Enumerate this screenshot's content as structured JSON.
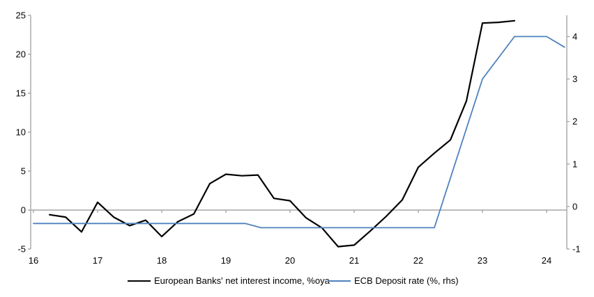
{
  "chart_data": {
    "type": "line",
    "title": "",
    "legend_position": "bottom",
    "grid": false,
    "colors": {
      "axis_line": "#a6a6a6",
      "zero_line": "#a6a6a6",
      "tick_label": "#000000",
      "series_nii": "#000000",
      "series_ecb": "#4f81bd",
      "background": "#ffffff"
    },
    "x_axis": {
      "ticks": [
        16,
        17,
        18,
        19,
        20,
        21,
        22,
        23,
        24
      ],
      "range": [
        15.96,
        24.32
      ]
    },
    "left_axis": {
      "ticks": [
        -5,
        0,
        5,
        10,
        15,
        20,
        25
      ],
      "range": [
        -5,
        25
      ]
    },
    "right_axis": {
      "ticks": [
        -1,
        0,
        1,
        2,
        3,
        4
      ],
      "range": [
        -1,
        4.5
      ]
    },
    "series": [
      {
        "name": "European Banks' net interest income, %oya",
        "axis": "left",
        "color": "#000000",
        "width": 2.2,
        "x": [
          16.25,
          16.5,
          16.75,
          17.0,
          17.25,
          17.5,
          17.75,
          18.0,
          18.25,
          18.5,
          18.75,
          19.0,
          19.25,
          19.5,
          19.75,
          20.0,
          20.25,
          20.5,
          20.75,
          21.0,
          21.25,
          21.5,
          21.75,
          22.0,
          22.25,
          22.5,
          22.75,
          23.0,
          23.25,
          23.5
        ],
        "values": [
          -0.6,
          -0.9,
          -2.8,
          1.0,
          -0.9,
          -2.0,
          -1.3,
          -3.4,
          -1.5,
          -0.5,
          3.4,
          4.6,
          4.4,
          4.5,
          1.5,
          1.2,
          -1.0,
          -2.3,
          -4.7,
          -4.5,
          -2.7,
          -0.8,
          1.3,
          5.5,
          7.3,
          9.0,
          14.0,
          24.0,
          24.1,
          24.3
        ]
      },
      {
        "name": "ECB Deposit rate (%, rhs)",
        "axis": "right",
        "color": "#4f81bd",
        "width": 1.8,
        "x": [
          16.0,
          19.3,
          19.55,
          22.25,
          23.0,
          23.5,
          24.0,
          24.28
        ],
        "values": [
          -0.4,
          -0.4,
          -0.5,
          -0.5,
          3.0,
          4.0,
          4.0,
          3.75
        ]
      }
    ]
  }
}
